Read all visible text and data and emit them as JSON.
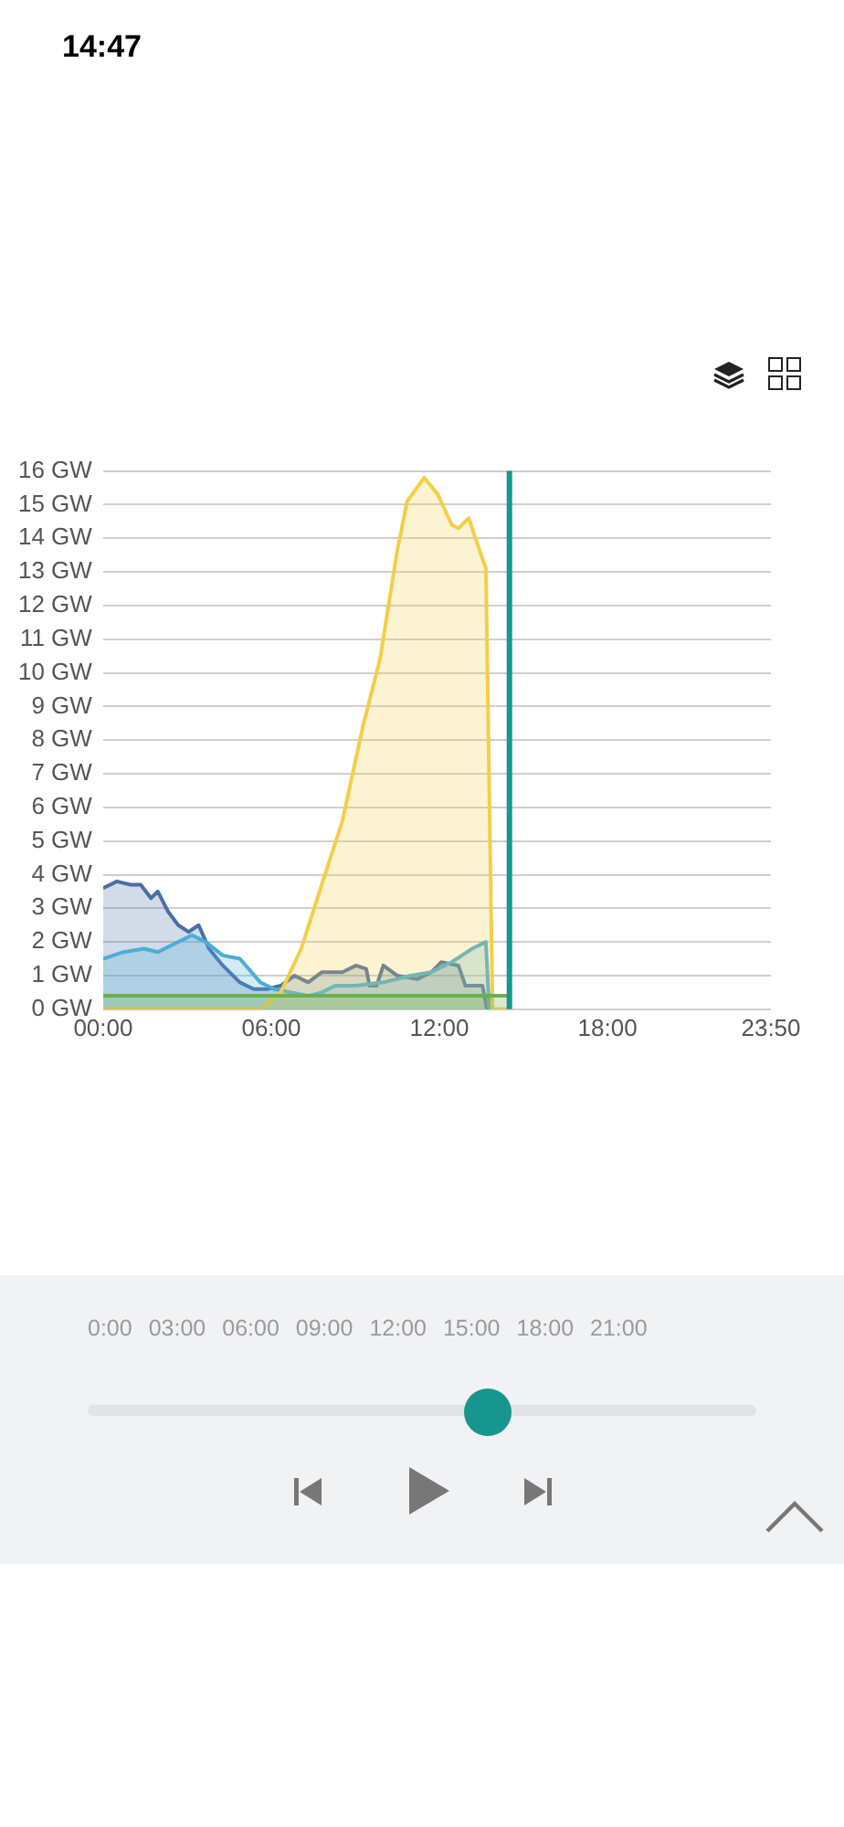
{
  "chart_data": {
    "type": "area",
    "xlim": [
      0,
      23.8333
    ],
    "xticks": [
      {
        "value": 0,
        "label": "00:00"
      },
      {
        "value": 6,
        "label": "06:00"
      },
      {
        "value": 12,
        "label": "12:00"
      },
      {
        "value": 18,
        "label": "18:00"
      },
      {
        "value": 23.8333,
        "label": "23:50"
      }
    ],
    "ylim": [
      0,
      16
    ],
    "yticks": [
      {
        "value": 0,
        "label": "0 GW"
      },
      {
        "value": 1,
        "label": "1 GW"
      },
      {
        "value": 2,
        "label": "2 GW"
      },
      {
        "value": 3,
        "label": "3 GW"
      },
      {
        "value": 4,
        "label": "4 GW"
      },
      {
        "value": 5,
        "label": "5 GW"
      },
      {
        "value": 6,
        "label": "6 GW"
      },
      {
        "value": 7,
        "label": "7 GW"
      },
      {
        "value": 8,
        "label": "8 GW"
      },
      {
        "value": 9,
        "label": "9 GW"
      },
      {
        "value": 10,
        "label": "10 GW"
      },
      {
        "value": 11,
        "label": "11 GW"
      },
      {
        "value": 12,
        "label": "12 GW"
      },
      {
        "value": 13,
        "label": "13 GW"
      },
      {
        "value": 14,
        "label": "14 GW"
      },
      {
        "value": 15,
        "label": "15 GW"
      },
      {
        "value": 16,
        "label": "16 GW"
      }
    ],
    "grid": "y",
    "legend": false,
    "marker": "none",
    "line_style": "solid",
    "series": [
      {
        "color": "#6ab04c",
        "x": [
          0,
          14.5
        ],
        "values": [
          0.4,
          0.4
        ]
      },
      {
        "color": "#f2cf4a",
        "x": [
          0,
          5.6,
          6.34,
          7.07,
          7.8,
          8.54,
          9.27,
          9.88,
          10.49,
          10.85,
          11.46,
          11.95,
          12.44,
          12.68,
          13.05,
          13.29,
          13.66,
          13.9,
          14.5
        ],
        "values": [
          0,
          0,
          0.5,
          1.8,
          3.7,
          5.6,
          8.4,
          10.4,
          13.6,
          15.1,
          15.8,
          15.3,
          14.4,
          14.3,
          14.6,
          14,
          13.1,
          0,
          0
        ]
      },
      {
        "color": "#4aaed6",
        "x": [
          0,
          0.73,
          1.46,
          1.95,
          2.68,
          3.17,
          3.66,
          4.27,
          4.88,
          5.61,
          6.1,
          6.71,
          7.32,
          7.8,
          8.29,
          9.02,
          10,
          10.98,
          11.71,
          12.44,
          13.17,
          13.66,
          13.78
        ],
        "values": [
          1.5,
          1.7,
          1.8,
          1.7,
          2,
          2.2,
          2,
          1.6,
          1.5,
          0.8,
          0.6,
          0.5,
          0.4,
          0.5,
          0.7,
          0.7,
          0.8,
          1,
          1.1,
          1.4,
          1.8,
          2,
          0
        ]
      },
      {
        "color": "#4a6fa5",
        "x": [
          0,
          0.49,
          0.98,
          1.34,
          1.71,
          1.95,
          2.32,
          2.68,
          3.05,
          3.41,
          3.78,
          4.27,
          4.88,
          5.37,
          5.85,
          6.34,
          6.83,
          7.32,
          7.8,
          8.54,
          9.02,
          9.39,
          9.51,
          9.76,
          10,
          10.49,
          11.22,
          11.71,
          12.07,
          12.68,
          12.93,
          13.54,
          13.7
        ],
        "values": [
          3.6,
          3.8,
          3.7,
          3.7,
          3.3,
          3.5,
          2.9,
          2.5,
          2.3,
          2.5,
          1.8,
          1.3,
          0.8,
          0.6,
          0.6,
          0.7,
          1,
          0.8,
          1.1,
          1.1,
          1.3,
          1.2,
          0.7,
          0.7,
          1.3,
          1,
          0.9,
          1.1,
          1.4,
          1.3,
          0.7,
          0.7,
          0
        ]
      }
    ],
    "ref_lines": [
      {
        "axis": "x",
        "value": 14.5,
        "color": "#17968f"
      }
    ],
    "annotations": [
      "14:47",
      "0:00",
      "03:00",
      "06:00",
      "09:00",
      "12:00",
      "15:00",
      "18:00",
      "21:00"
    ]
  }
}
